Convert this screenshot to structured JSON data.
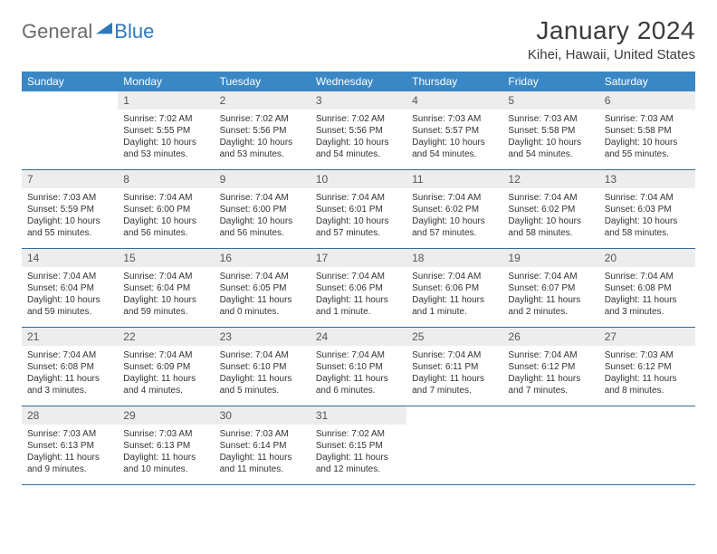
{
  "brand": {
    "part1": "General",
    "part2": "Blue",
    "text_color1": "#6b6b6b",
    "text_color2": "#2f78bd"
  },
  "title": "January 2024",
  "location": "Kihei, Hawaii, United States",
  "colors": {
    "header_bg": "#3a87c6",
    "header_text": "#ffffff",
    "daynum_bg": "#ededed",
    "daynum_text": "#555555",
    "cell_text": "#333333",
    "rule": "#2f6ca3",
    "page_bg": "#ffffff"
  },
  "fonts": {
    "title_pt": 28,
    "location_pt": 15,
    "weekday_pt": 12,
    "daynum_pt": 12,
    "body_pt": 10
  },
  "layout": {
    "columns": 7,
    "rows": 5,
    "aspect": "792x612"
  },
  "weekdays": [
    "Sunday",
    "Monday",
    "Tuesday",
    "Wednesday",
    "Thursday",
    "Friday",
    "Saturday"
  ],
  "grid": [
    [
      null,
      {
        "n": "1",
        "sunrise": "7:02 AM",
        "sunset": "5:55 PM",
        "daylight": "10 hours and 53 minutes."
      },
      {
        "n": "2",
        "sunrise": "7:02 AM",
        "sunset": "5:56 PM",
        "daylight": "10 hours and 53 minutes."
      },
      {
        "n": "3",
        "sunrise": "7:02 AM",
        "sunset": "5:56 PM",
        "daylight": "10 hours and 54 minutes."
      },
      {
        "n": "4",
        "sunrise": "7:03 AM",
        "sunset": "5:57 PM",
        "daylight": "10 hours and 54 minutes."
      },
      {
        "n": "5",
        "sunrise": "7:03 AM",
        "sunset": "5:58 PM",
        "daylight": "10 hours and 54 minutes."
      },
      {
        "n": "6",
        "sunrise": "7:03 AM",
        "sunset": "5:58 PM",
        "daylight": "10 hours and 55 minutes."
      }
    ],
    [
      {
        "n": "7",
        "sunrise": "7:03 AM",
        "sunset": "5:59 PM",
        "daylight": "10 hours and 55 minutes."
      },
      {
        "n": "8",
        "sunrise": "7:04 AM",
        "sunset": "6:00 PM",
        "daylight": "10 hours and 56 minutes."
      },
      {
        "n": "9",
        "sunrise": "7:04 AM",
        "sunset": "6:00 PM",
        "daylight": "10 hours and 56 minutes."
      },
      {
        "n": "10",
        "sunrise": "7:04 AM",
        "sunset": "6:01 PM",
        "daylight": "10 hours and 57 minutes."
      },
      {
        "n": "11",
        "sunrise": "7:04 AM",
        "sunset": "6:02 PM",
        "daylight": "10 hours and 57 minutes."
      },
      {
        "n": "12",
        "sunrise": "7:04 AM",
        "sunset": "6:02 PM",
        "daylight": "10 hours and 58 minutes."
      },
      {
        "n": "13",
        "sunrise": "7:04 AM",
        "sunset": "6:03 PM",
        "daylight": "10 hours and 58 minutes."
      }
    ],
    [
      {
        "n": "14",
        "sunrise": "7:04 AM",
        "sunset": "6:04 PM",
        "daylight": "10 hours and 59 minutes."
      },
      {
        "n": "15",
        "sunrise": "7:04 AM",
        "sunset": "6:04 PM",
        "daylight": "10 hours and 59 minutes."
      },
      {
        "n": "16",
        "sunrise": "7:04 AM",
        "sunset": "6:05 PM",
        "daylight": "11 hours and 0 minutes."
      },
      {
        "n": "17",
        "sunrise": "7:04 AM",
        "sunset": "6:06 PM",
        "daylight": "11 hours and 1 minute."
      },
      {
        "n": "18",
        "sunrise": "7:04 AM",
        "sunset": "6:06 PM",
        "daylight": "11 hours and 1 minute."
      },
      {
        "n": "19",
        "sunrise": "7:04 AM",
        "sunset": "6:07 PM",
        "daylight": "11 hours and 2 minutes."
      },
      {
        "n": "20",
        "sunrise": "7:04 AM",
        "sunset": "6:08 PM",
        "daylight": "11 hours and 3 minutes."
      }
    ],
    [
      {
        "n": "21",
        "sunrise": "7:04 AM",
        "sunset": "6:08 PM",
        "daylight": "11 hours and 3 minutes."
      },
      {
        "n": "22",
        "sunrise": "7:04 AM",
        "sunset": "6:09 PM",
        "daylight": "11 hours and 4 minutes."
      },
      {
        "n": "23",
        "sunrise": "7:04 AM",
        "sunset": "6:10 PM",
        "daylight": "11 hours and 5 minutes."
      },
      {
        "n": "24",
        "sunrise": "7:04 AM",
        "sunset": "6:10 PM",
        "daylight": "11 hours and 6 minutes."
      },
      {
        "n": "25",
        "sunrise": "7:04 AM",
        "sunset": "6:11 PM",
        "daylight": "11 hours and 7 minutes."
      },
      {
        "n": "26",
        "sunrise": "7:04 AM",
        "sunset": "6:12 PM",
        "daylight": "11 hours and 7 minutes."
      },
      {
        "n": "27",
        "sunrise": "7:03 AM",
        "sunset": "6:12 PM",
        "daylight": "11 hours and 8 minutes."
      }
    ],
    [
      {
        "n": "28",
        "sunrise": "7:03 AM",
        "sunset": "6:13 PM",
        "daylight": "11 hours and 9 minutes."
      },
      {
        "n": "29",
        "sunrise": "7:03 AM",
        "sunset": "6:13 PM",
        "daylight": "11 hours and 10 minutes."
      },
      {
        "n": "30",
        "sunrise": "7:03 AM",
        "sunset": "6:14 PM",
        "daylight": "11 hours and 11 minutes."
      },
      {
        "n": "31",
        "sunrise": "7:02 AM",
        "sunset": "6:15 PM",
        "daylight": "11 hours and 12 minutes."
      },
      null,
      null,
      null
    ]
  ],
  "labels": {
    "sunrise": "Sunrise:",
    "sunset": "Sunset:",
    "daylight": "Daylight:"
  }
}
